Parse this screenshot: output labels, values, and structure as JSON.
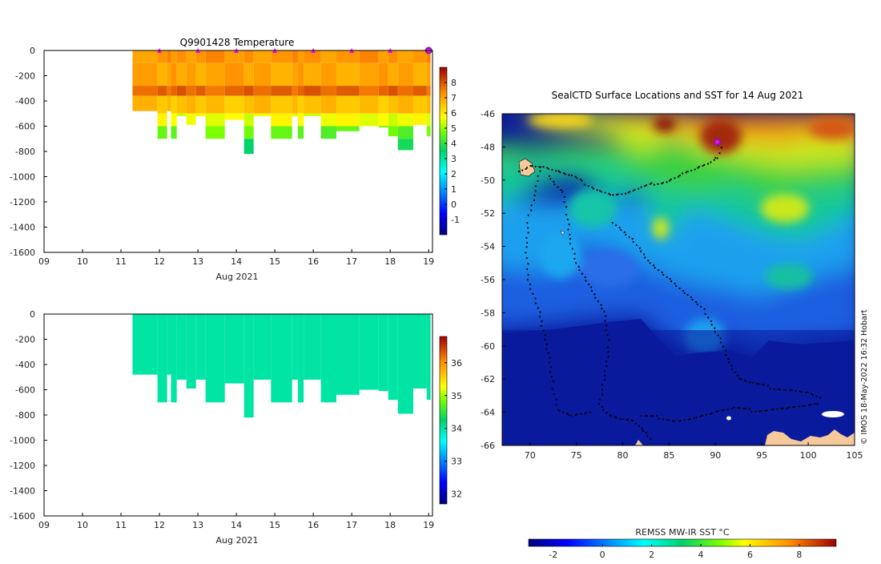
{
  "chart_data": [
    {
      "id": "temperature-profile",
      "type": "heatmap",
      "title": "Q9901428  Temperature",
      "xlabel": "Aug 2021",
      "xlim": [
        9,
        19.1
      ],
      "ylim": [
        -1600,
        0
      ],
      "xticks": [
        "09",
        "10",
        "11",
        "12",
        "13",
        "14",
        "15",
        "16",
        "17",
        "18",
        "19"
      ],
      "yticks": [
        "0",
        "-200",
        "-400",
        "-600",
        "-800",
        "-1000",
        "-1200",
        "-1400",
        "-1600"
      ],
      "colorbar": {
        "min": -2,
        "max": 9,
        "ticks": [
          "-1",
          "0",
          "1",
          "2",
          "3",
          "4",
          "5",
          "6",
          "7",
          "8"
        ]
      },
      "profile_markers_x": [
        12,
        13,
        14,
        15,
        16,
        17,
        18
      ],
      "profile_bottoms": [
        {
          "x0": 11.3,
          "x1": 11.95,
          "depth": -480
        },
        {
          "x0": 11.95,
          "x1": 12.2,
          "depth": -700
        },
        {
          "x0": 12.2,
          "x1": 12.3,
          "depth": -480
        },
        {
          "x0": 12.3,
          "x1": 12.45,
          "depth": -700
        },
        {
          "x0": 12.45,
          "x1": 12.7,
          "depth": -520
        },
        {
          "x0": 12.7,
          "x1": 12.95,
          "depth": -590
        },
        {
          "x0": 12.95,
          "x1": 13.2,
          "depth": -520
        },
        {
          "x0": 13.2,
          "x1": 13.7,
          "depth": -700
        },
        {
          "x0": 13.7,
          "x1": 14.2,
          "depth": -550
        },
        {
          "x0": 14.2,
          "x1": 14.45,
          "depth": -820
        },
        {
          "x0": 14.45,
          "x1": 14.9,
          "depth": -520
        },
        {
          "x0": 14.9,
          "x1": 15.45,
          "depth": -700
        },
        {
          "x0": 15.45,
          "x1": 15.6,
          "depth": -520
        },
        {
          "x0": 15.6,
          "x1": 15.75,
          "depth": -700
        },
        {
          "x0": 15.75,
          "x1": 16.2,
          "depth": -520
        },
        {
          "x0": 16.2,
          "x1": 16.6,
          "depth": -700
        },
        {
          "x0": 16.6,
          "x1": 17.2,
          "depth": -640
        },
        {
          "x0": 17.2,
          "x1": 17.7,
          "depth": -600
        },
        {
          "x0": 17.7,
          "x1": 17.95,
          "depth": -610
        },
        {
          "x0": 17.95,
          "x1": 18.2,
          "depth": -680
        },
        {
          "x0": 18.2,
          "x1": 18.6,
          "depth": -790
        },
        {
          "x0": 18.6,
          "x1": 18.95,
          "depth": -590
        },
        {
          "x0": 18.95,
          "x1": 19.05,
          "depth": -680
        }
      ],
      "temperature_layers": [
        {
          "top": 0,
          "bottom": -100,
          "value": 7.2
        },
        {
          "top": -100,
          "bottom": -280,
          "value": 7.0
        },
        {
          "top": -280,
          "bottom": -360,
          "value": 7.8
        },
        {
          "top": -360,
          "bottom": -500,
          "value": 6.6
        },
        {
          "top": -500,
          "bottom": -600,
          "value": 5.6
        },
        {
          "top": -600,
          "bottom": -700,
          "value": 4.6
        },
        {
          "top": -700,
          "bottom": -820,
          "value": 3.6
        }
      ]
    },
    {
      "id": "salinity-profile",
      "type": "heatmap",
      "title": "",
      "xlabel": "Aug 2021",
      "xlim": [
        9,
        19.1
      ],
      "ylim": [
        -1600,
        0
      ],
      "xticks": [
        "09",
        "10",
        "11",
        "12",
        "13",
        "14",
        "15",
        "16",
        "17",
        "18",
        "19"
      ],
      "yticks": [
        "0",
        "-200",
        "-400",
        "-600",
        "-800",
        "-1000",
        "-1200",
        "-1400",
        "-1600"
      ],
      "colorbar": {
        "min": 31.7,
        "max": 36.8,
        "ticks": [
          "32",
          "33",
          "34",
          "35",
          "36"
        ]
      },
      "fill_value": 34.0
    },
    {
      "id": "sst-map",
      "type": "heatmap",
      "title": "SealCTD Surface Locations and SST for 14 Aug 2021",
      "xlim": [
        67,
        105
      ],
      "ylim": [
        -66,
        -46
      ],
      "xticks": [
        "70",
        "75",
        "80",
        "85",
        "90",
        "95",
        "100",
        "105"
      ],
      "yticks": [
        "-46",
        "-48",
        "-50",
        "-52",
        "-54",
        "-56",
        "-58",
        "-60",
        "-62",
        "-64",
        "-66"
      ],
      "colorbar": {
        "label": "REMSS MW-IR SST °C",
        "min": -3,
        "max": 9.5,
        "ticks": [
          "-2",
          "0",
          "2",
          "4",
          "6",
          "8"
        ]
      },
      "current_position": {
        "lon": 90.2,
        "lat": -47.7
      },
      "track": [
        [
          68.9,
          -49.4
        ],
        [
          70.0,
          -49.1
        ],
        [
          71.5,
          -49.2
        ],
        [
          73.0,
          -49.5
        ],
        [
          74.5,
          -49.8
        ],
        [
          76.0,
          -50.2
        ],
        [
          77.5,
          -50.6
        ],
        [
          79.0,
          -50.9
        ],
        [
          80.5,
          -50.8
        ],
        [
          82.0,
          -50.5
        ],
        [
          83.5,
          -50.2
        ],
        [
          85.0,
          -50.0
        ],
        [
          86.5,
          -49.6
        ],
        [
          88.0,
          -49.3
        ],
        [
          89.5,
          -49.0
        ],
        [
          90.3,
          -48.6
        ],
        [
          90.6,
          -48.0
        ],
        [
          90.2,
          -47.7
        ],
        [
          72.0,
          -49.8
        ],
        [
          73.5,
          -50.8
        ],
        [
          74.0,
          -52.0
        ],
        [
          74.3,
          -53.5
        ],
        [
          75.0,
          -55.0
        ],
        [
          76.5,
          -56.5
        ],
        [
          78.0,
          -58.0
        ],
        [
          78.5,
          -60.0
        ],
        [
          78.0,
          -62.0
        ],
        [
          77.5,
          -63.5
        ],
        [
          78.5,
          -64.2
        ],
        [
          80.0,
          -64.5
        ],
        [
          81.5,
          -64.6
        ],
        [
          82.5,
          -65.2
        ],
        [
          83.0,
          -65.6
        ],
        [
          71.0,
          -49.5
        ],
        [
          70.5,
          -51.0
        ],
        [
          69.8,
          -52.5
        ],
        [
          69.6,
          -54.0
        ],
        [
          69.8,
          -56.0
        ],
        [
          71.0,
          -58.0
        ],
        [
          72.0,
          -60.5
        ],
        [
          72.5,
          -62.5
        ],
        [
          73.0,
          -63.8
        ],
        [
          74.5,
          -64.2
        ],
        [
          76.5,
          -64.0
        ],
        [
          82.0,
          -64.3
        ],
        [
          84.0,
          -64.3
        ],
        [
          86.0,
          -64.5
        ],
        [
          88.0,
          -64.3
        ],
        [
          90.0,
          -64.0
        ],
        [
          92.0,
          -63.8
        ],
        [
          94.0,
          -63.9
        ],
        [
          96.0,
          -63.8
        ],
        [
          98.0,
          -63.7
        ],
        [
          100.0,
          -63.6
        ],
        [
          101.0,
          -63.5
        ],
        [
          79.0,
          -52.5
        ],
        [
          81.0,
          -53.5
        ],
        [
          83.0,
          -55.0
        ],
        [
          85.0,
          -56.0
        ],
        [
          87.0,
          -57.0
        ],
        [
          89.0,
          -58.0
        ],
        [
          90.5,
          -59.5
        ],
        [
          91.5,
          -61.0
        ],
        [
          92.5,
          -62.0
        ],
        [
          94.0,
          -62.3
        ],
        [
          96.0,
          -62.5
        ],
        [
          98.0,
          -62.6
        ],
        [
          100.0,
          -62.8
        ],
        [
          101.5,
          -63.2
        ]
      ]
    }
  ],
  "credit": "© IMOS 18-May-2022 16:32 Hobart",
  "colors": {
    "marker_magenta": "#ff00ff",
    "position_ring": "#7b1fa2",
    "land": "#f5c99a",
    "ice": "#ffffff",
    "track": "#000000"
  }
}
